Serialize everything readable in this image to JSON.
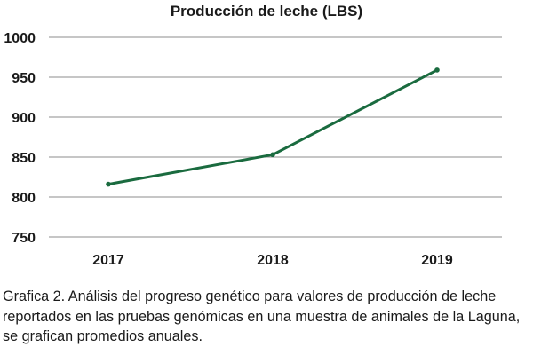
{
  "chart_data": {
    "type": "line",
    "title": "Producción de leche (LBS)",
    "categories": [
      "2017",
      "2018",
      "2019"
    ],
    "series": [
      {
        "values": [
          816,
          853,
          959
        ]
      }
    ],
    "ylim": [
      750,
      1000
    ],
    "yticks": [
      750,
      800,
      850,
      900,
      950,
      1000
    ],
    "ytick_labels": [
      "750",
      "800",
      "850",
      "900",
      "950",
      "1000"
    ],
    "xlabel": "",
    "ylabel": "",
    "grid": "horizontal",
    "legend": "none",
    "line_color": "#1a6b3f"
  },
  "caption": "Grafica 2. Análisis del progreso genético para valores de producción de leche reportados en las pruebas genómicas en una muestra de animales de la Laguna, se grafican promedios anuales."
}
